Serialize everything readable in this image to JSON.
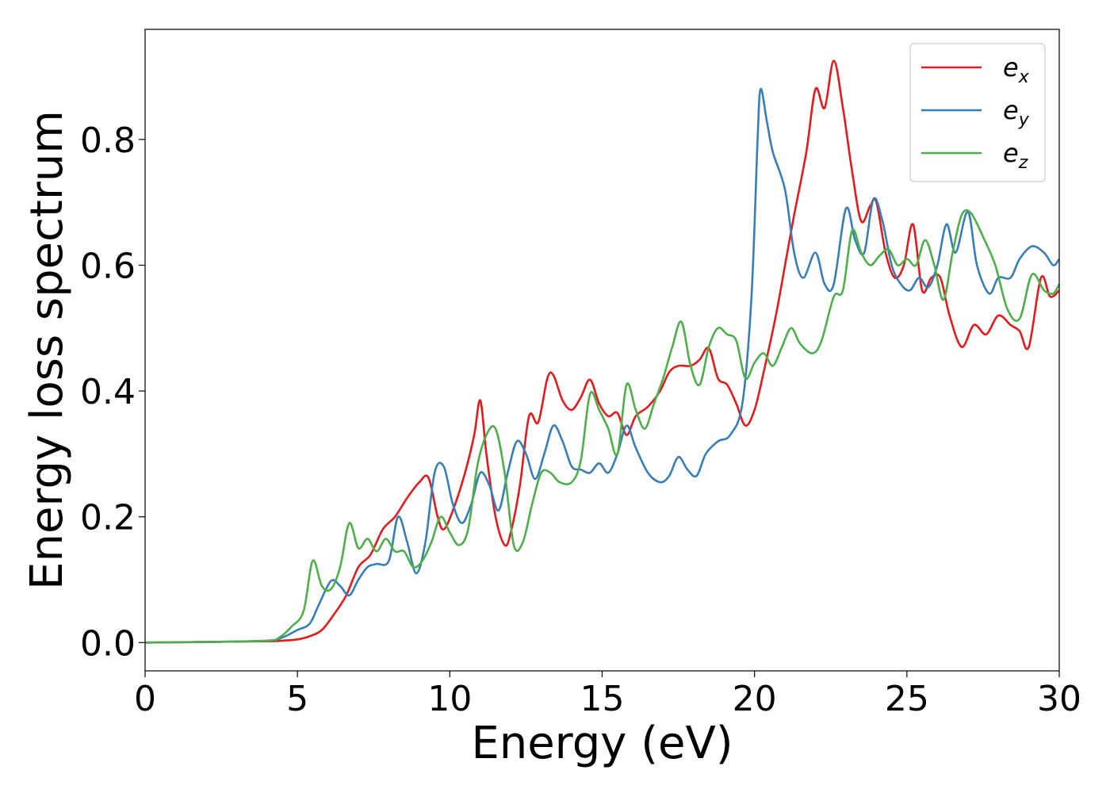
{
  "chart_data": {
    "type": "line",
    "title": "",
    "xlabel": "Energy (eV)",
    "ylabel": "Energy loss spectrum",
    "xlim": [
      0,
      30
    ],
    "ylim": [
      -0.045,
      0.975
    ],
    "xticks": [
      0,
      5,
      10,
      15,
      20,
      25,
      30
    ],
    "xtick_labels": [
      "0",
      "5",
      "10",
      "15",
      "20",
      "25",
      "30"
    ],
    "yticks": [
      0.0,
      0.2,
      0.4,
      0.6,
      0.8
    ],
    "ytick_labels": [
      "0.0",
      "0.2",
      "0.4",
      "0.6",
      "0.8"
    ],
    "grid": false,
    "legend_position": "top-right",
    "series": [
      {
        "name": "ex",
        "legend_base": "e",
        "legend_sub": "x",
        "color": "#e41a1c",
        "points": [
          [
            0,
            0
          ],
          [
            2,
            0.001
          ],
          [
            4,
            0.002
          ],
          [
            4.5,
            0.003
          ],
          [
            5,
            0.005
          ],
          [
            5.4,
            0.01
          ],
          [
            5.8,
            0.02
          ],
          [
            6.2,
            0.045
          ],
          [
            6.6,
            0.075
          ],
          [
            7.0,
            0.12
          ],
          [
            7.4,
            0.14
          ],
          [
            7.8,
            0.18
          ],
          [
            8.2,
            0.2
          ],
          [
            8.6,
            0.23
          ],
          [
            9.0,
            0.255
          ],
          [
            9.3,
            0.262
          ],
          [
            9.6,
            0.2
          ],
          [
            9.8,
            0.18
          ],
          [
            10.1,
            0.21
          ],
          [
            10.5,
            0.27
          ],
          [
            10.8,
            0.33
          ],
          [
            11.0,
            0.385
          ],
          [
            11.2,
            0.3
          ],
          [
            11.5,
            0.2
          ],
          [
            11.8,
            0.155
          ],
          [
            12.0,
            0.175
          ],
          [
            12.3,
            0.25
          ],
          [
            12.6,
            0.36
          ],
          [
            12.9,
            0.35
          ],
          [
            13.2,
            0.42
          ],
          [
            13.4,
            0.425
          ],
          [
            13.7,
            0.385
          ],
          [
            14.0,
            0.37
          ],
          [
            14.3,
            0.39
          ],
          [
            14.6,
            0.418
          ],
          [
            14.9,
            0.38
          ],
          [
            15.2,
            0.36
          ],
          [
            15.5,
            0.365
          ],
          [
            15.8,
            0.33
          ],
          [
            16.1,
            0.36
          ],
          [
            16.5,
            0.375
          ],
          [
            16.9,
            0.4
          ],
          [
            17.2,
            0.43
          ],
          [
            17.5,
            0.44
          ],
          [
            17.9,
            0.44
          ],
          [
            18.2,
            0.45
          ],
          [
            18.5,
            0.468
          ],
          [
            18.8,
            0.42
          ],
          [
            19.1,
            0.41
          ],
          [
            19.4,
            0.38
          ],
          [
            19.7,
            0.345
          ],
          [
            20.0,
            0.37
          ],
          [
            20.3,
            0.43
          ],
          [
            20.7,
            0.52
          ],
          [
            21.0,
            0.6
          ],
          [
            21.3,
            0.68
          ],
          [
            21.7,
            0.78
          ],
          [
            22.0,
            0.88
          ],
          [
            22.3,
            0.85
          ],
          [
            22.6,
            0.925
          ],
          [
            22.9,
            0.85
          ],
          [
            23.2,
            0.75
          ],
          [
            23.5,
            0.67
          ],
          [
            23.8,
            0.695
          ],
          [
            24.0,
            0.7
          ],
          [
            24.3,
            0.62
          ],
          [
            24.6,
            0.58
          ],
          [
            24.9,
            0.6
          ],
          [
            25.2,
            0.665
          ],
          [
            25.5,
            0.56
          ],
          [
            25.8,
            0.58
          ],
          [
            26.1,
            0.58
          ],
          [
            26.4,
            0.52
          ],
          [
            26.8,
            0.47
          ],
          [
            27.2,
            0.505
          ],
          [
            27.6,
            0.49
          ],
          [
            28.0,
            0.52
          ],
          [
            28.4,
            0.505
          ],
          [
            28.7,
            0.495
          ],
          [
            29.0,
            0.47
          ],
          [
            29.4,
            0.58
          ],
          [
            29.7,
            0.55
          ],
          [
            30.0,
            0.56
          ]
        ]
      },
      {
        "name": "ey",
        "legend_base": "e",
        "legend_sub": "y",
        "color": "#377eb8",
        "points": [
          [
            0,
            0
          ],
          [
            2,
            0.001
          ],
          [
            4,
            0.003
          ],
          [
            4.5,
            0.008
          ],
          [
            5.0,
            0.02
          ],
          [
            5.4,
            0.03
          ],
          [
            5.7,
            0.06
          ],
          [
            6.1,
            0.098
          ],
          [
            6.4,
            0.09
          ],
          [
            6.7,
            0.075
          ],
          [
            7.0,
            0.1
          ],
          [
            7.3,
            0.12
          ],
          [
            7.6,
            0.125
          ],
          [
            8.0,
            0.13
          ],
          [
            8.3,
            0.2
          ],
          [
            8.6,
            0.16
          ],
          [
            8.9,
            0.11
          ],
          [
            9.2,
            0.16
          ],
          [
            9.5,
            0.27
          ],
          [
            9.8,
            0.28
          ],
          [
            10.1,
            0.22
          ],
          [
            10.4,
            0.19
          ],
          [
            10.7,
            0.22
          ],
          [
            11.0,
            0.27
          ],
          [
            11.3,
            0.25
          ],
          [
            11.6,
            0.21
          ],
          [
            11.9,
            0.27
          ],
          [
            12.2,
            0.32
          ],
          [
            12.5,
            0.3
          ],
          [
            12.8,
            0.26
          ],
          [
            13.1,
            0.3
          ],
          [
            13.4,
            0.345
          ],
          [
            13.7,
            0.32
          ],
          [
            14.0,
            0.28
          ],
          [
            14.3,
            0.275
          ],
          [
            14.6,
            0.27
          ],
          [
            14.9,
            0.285
          ],
          [
            15.2,
            0.27
          ],
          [
            15.5,
            0.3
          ],
          [
            15.8,
            0.345
          ],
          [
            16.1,
            0.31
          ],
          [
            16.5,
            0.27
          ],
          [
            16.9,
            0.255
          ],
          [
            17.2,
            0.265
          ],
          [
            17.5,
            0.295
          ],
          [
            17.8,
            0.275
          ],
          [
            18.1,
            0.265
          ],
          [
            18.4,
            0.3
          ],
          [
            18.8,
            0.32
          ],
          [
            19.2,
            0.33
          ],
          [
            19.6,
            0.38
          ],
          [
            19.9,
            0.55
          ],
          [
            20.1,
            0.8
          ],
          [
            20.2,
            0.88
          ],
          [
            20.4,
            0.83
          ],
          [
            20.6,
            0.78
          ],
          [
            21.0,
            0.72
          ],
          [
            21.3,
            0.62
          ],
          [
            21.6,
            0.58
          ],
          [
            22.0,
            0.62
          ],
          [
            22.3,
            0.57
          ],
          [
            22.6,
            0.57
          ],
          [
            23.0,
            0.69
          ],
          [
            23.3,
            0.64
          ],
          [
            23.6,
            0.62
          ],
          [
            23.9,
            0.705
          ],
          [
            24.2,
            0.67
          ],
          [
            24.5,
            0.6
          ],
          [
            24.8,
            0.57
          ],
          [
            25.1,
            0.56
          ],
          [
            25.4,
            0.58
          ],
          [
            25.7,
            0.565
          ],
          [
            26.0,
            0.6
          ],
          [
            26.3,
            0.665
          ],
          [
            26.6,
            0.62
          ],
          [
            27.0,
            0.685
          ],
          [
            27.3,
            0.6
          ],
          [
            27.7,
            0.555
          ],
          [
            28.0,
            0.58
          ],
          [
            28.4,
            0.58
          ],
          [
            28.7,
            0.61
          ],
          [
            29.1,
            0.63
          ],
          [
            29.5,
            0.62
          ],
          [
            29.8,
            0.6
          ],
          [
            30.0,
            0.61
          ]
        ]
      },
      {
        "name": "ez",
        "legend_base": "e",
        "legend_sub": "z",
        "color": "#4daf4a",
        "points": [
          [
            0,
            0
          ],
          [
            2,
            0.001
          ],
          [
            4,
            0.003
          ],
          [
            4.4,
            0.008
          ],
          [
            4.8,
            0.025
          ],
          [
            5.2,
            0.05
          ],
          [
            5.5,
            0.13
          ],
          [
            5.8,
            0.09
          ],
          [
            6.1,
            0.085
          ],
          [
            6.4,
            0.12
          ],
          [
            6.7,
            0.19
          ],
          [
            7.0,
            0.15
          ],
          [
            7.3,
            0.165
          ],
          [
            7.6,
            0.145
          ],
          [
            7.9,
            0.165
          ],
          [
            8.2,
            0.145
          ],
          [
            8.5,
            0.145
          ],
          [
            8.8,
            0.12
          ],
          [
            9.1,
            0.13
          ],
          [
            9.4,
            0.16
          ],
          [
            9.7,
            0.2
          ],
          [
            10.0,
            0.175
          ],
          [
            10.3,
            0.155
          ],
          [
            10.6,
            0.18
          ],
          [
            10.9,
            0.28
          ],
          [
            11.2,
            0.33
          ],
          [
            11.5,
            0.34
          ],
          [
            11.8,
            0.27
          ],
          [
            12.1,
            0.155
          ],
          [
            12.4,
            0.16
          ],
          [
            12.7,
            0.22
          ],
          [
            13.0,
            0.27
          ],
          [
            13.3,
            0.27
          ],
          [
            13.6,
            0.255
          ],
          [
            14.0,
            0.255
          ],
          [
            14.3,
            0.29
          ],
          [
            14.6,
            0.395
          ],
          [
            14.9,
            0.37
          ],
          [
            15.2,
            0.34
          ],
          [
            15.5,
            0.3
          ],
          [
            15.8,
            0.41
          ],
          [
            16.1,
            0.37
          ],
          [
            16.4,
            0.34
          ],
          [
            16.7,
            0.38
          ],
          [
            17.0,
            0.42
          ],
          [
            17.3,
            0.47
          ],
          [
            17.6,
            0.51
          ],
          [
            17.9,
            0.44
          ],
          [
            18.2,
            0.41
          ],
          [
            18.5,
            0.47
          ],
          [
            18.8,
            0.5
          ],
          [
            19.1,
            0.49
          ],
          [
            19.4,
            0.48
          ],
          [
            19.7,
            0.42
          ],
          [
            20.0,
            0.445
          ],
          [
            20.3,
            0.46
          ],
          [
            20.6,
            0.44
          ],
          [
            20.9,
            0.47
          ],
          [
            21.2,
            0.5
          ],
          [
            21.5,
            0.475
          ],
          [
            21.9,
            0.46
          ],
          [
            22.2,
            0.48
          ],
          [
            22.6,
            0.55
          ],
          [
            22.9,
            0.56
          ],
          [
            23.2,
            0.655
          ],
          [
            23.5,
            0.62
          ],
          [
            23.8,
            0.6
          ],
          [
            24.1,
            0.615
          ],
          [
            24.4,
            0.625
          ],
          [
            24.7,
            0.6
          ],
          [
            25.0,
            0.61
          ],
          [
            25.3,
            0.6
          ],
          [
            25.6,
            0.64
          ],
          [
            25.9,
            0.6
          ],
          [
            26.2,
            0.545
          ],
          [
            26.5,
            0.62
          ],
          [
            26.8,
            0.68
          ],
          [
            27.1,
            0.683
          ],
          [
            27.5,
            0.645
          ],
          [
            27.9,
            0.6
          ],
          [
            28.3,
            0.53
          ],
          [
            28.7,
            0.515
          ],
          [
            29.1,
            0.585
          ],
          [
            29.5,
            0.56
          ],
          [
            29.8,
            0.555
          ],
          [
            30.0,
            0.57
          ]
        ]
      }
    ]
  }
}
